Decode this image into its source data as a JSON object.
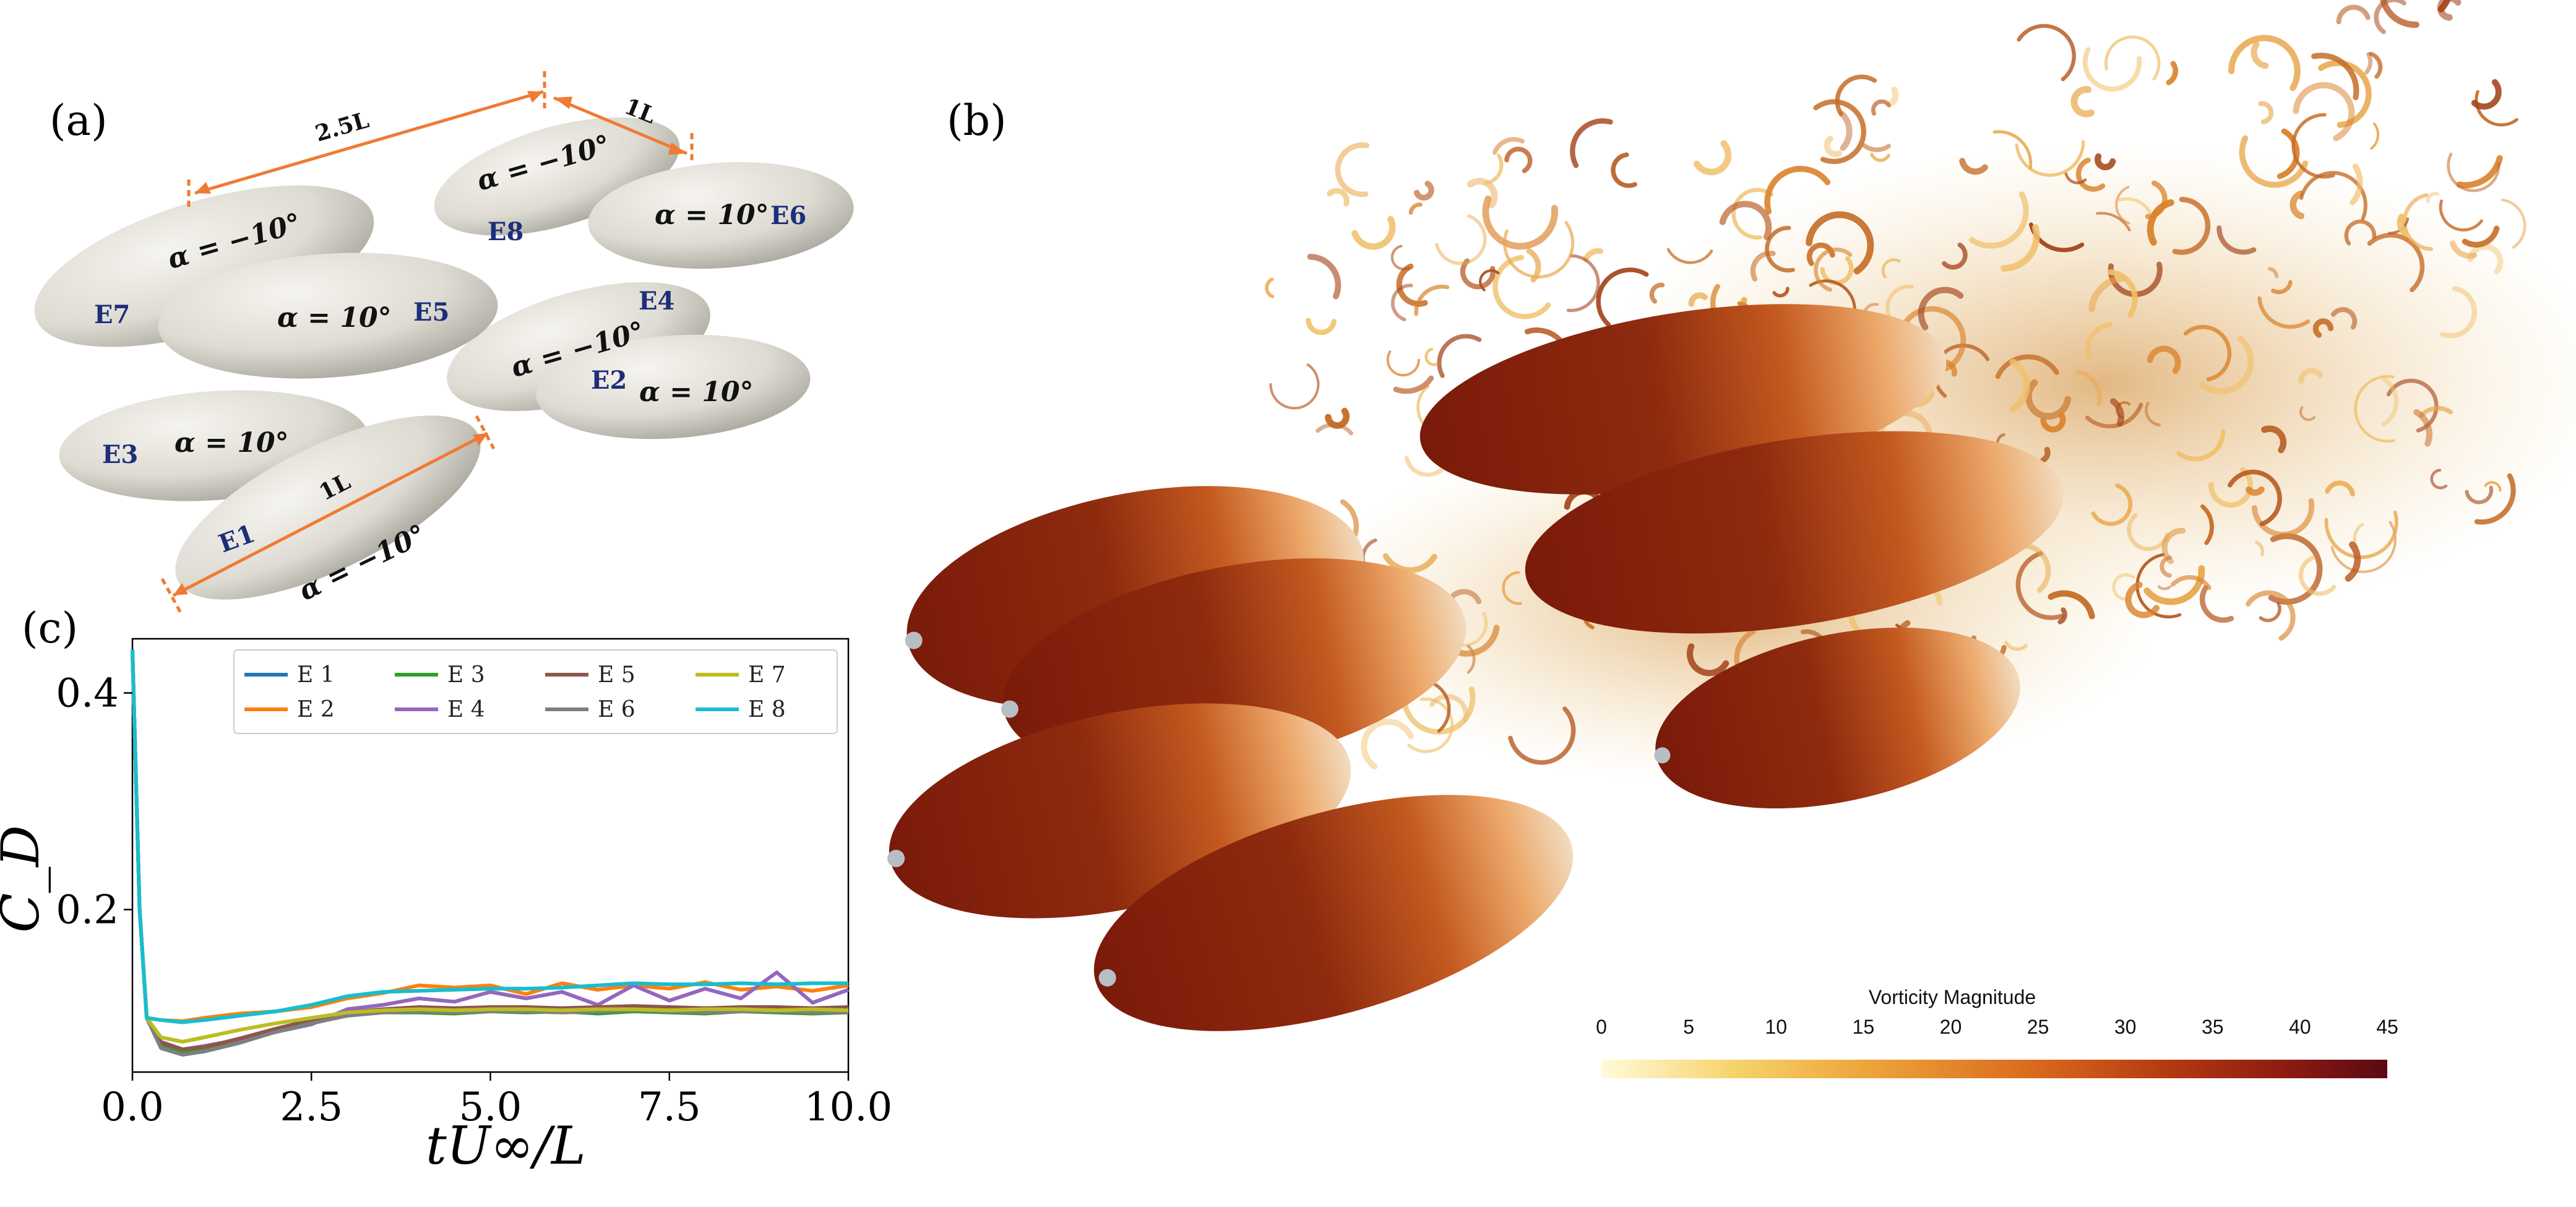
{
  "panels": {
    "a": "(a)",
    "b": "(b)",
    "c": "(c)"
  },
  "colors": {
    "body": "#dedbd3",
    "dimension": "#f07a33",
    "label": "#1d2e7a"
  },
  "panel_a": {
    "ellipsoids": [
      {
        "id": "E1",
        "angle": "α = −10°"
      },
      {
        "id": "E2",
        "angle": "α = 10°"
      },
      {
        "id": "E3",
        "angle": "α = 10°"
      },
      {
        "id": "E4",
        "angle": "α = −10°"
      },
      {
        "id": "E5",
        "angle": "α = 10°"
      },
      {
        "id": "E6",
        "angle": "α = 10°"
      },
      {
        "id": "E7",
        "angle": "α = −10°"
      },
      {
        "id": "E8",
        "angle": "α = −10°"
      }
    ],
    "dimensions": {
      "spacing": "2.5L",
      "gap": "1L",
      "length": "1L"
    }
  },
  "panel_b": {
    "colorbar": {
      "title": "Vorticity Magnitude",
      "ticks": [
        "0",
        "5",
        "10",
        "15",
        "20",
        "25",
        "30",
        "35",
        "40",
        "45"
      ],
      "colormap": [
        "#fffbd9",
        "#f6d36b",
        "#eda43a",
        "#d96a1e",
        "#b43a10",
        "#8a1a12",
        "#5a0a14"
      ]
    }
  },
  "chart_data": {
    "type": "line",
    "xlabel": "tU∞/L",
    "ylabel": "C_D",
    "xlim": [
      0,
      10
    ],
    "ylim": [
      0.05,
      0.45
    ],
    "xticks": [
      "0.0",
      "2.5",
      "5.0",
      "7.5",
      "10.0"
    ],
    "yticks": [
      "0.2",
      "0.4"
    ],
    "grid": false,
    "legend_position": "top-right",
    "x": [
      0.0,
      0.1,
      0.2,
      0.4,
      0.7,
      1.0,
      1.5,
      2.0,
      2.5,
      3.0,
      3.5,
      4.0,
      4.5,
      5.0,
      5.5,
      6.0,
      6.5,
      7.0,
      7.5,
      8.0,
      8.5,
      9.0,
      9.5,
      10.0
    ],
    "series": [
      {
        "name": "E 1",
        "color": "#1f77b4",
        "values": [
          0.44,
          0.2,
          0.1,
          0.076,
          0.07,
          0.072,
          0.08,
          0.09,
          0.098,
          0.104,
          0.106,
          0.107,
          0.106,
          0.107,
          0.108,
          0.107,
          0.108,
          0.107,
          0.108,
          0.107,
          0.108,
          0.107,
          0.108,
          0.107
        ]
      },
      {
        "name": "E 2",
        "color": "#ff7f0e",
        "values": [
          0.44,
          0.2,
          0.1,
          0.098,
          0.097,
          0.1,
          0.104,
          0.106,
          0.11,
          0.118,
          0.123,
          0.13,
          0.128,
          0.13,
          0.122,
          0.132,
          0.126,
          0.13,
          0.127,
          0.133,
          0.126,
          0.129,
          0.125,
          0.13
        ]
      },
      {
        "name": "E 3",
        "color": "#2ca02c",
        "values": [
          0.44,
          0.2,
          0.1,
          0.074,
          0.069,
          0.072,
          0.079,
          0.088,
          0.096,
          0.103,
          0.105,
          0.105,
          0.104,
          0.106,
          0.105,
          0.106,
          0.104,
          0.106,
          0.105,
          0.104,
          0.106,
          0.105,
          0.104,
          0.105
        ]
      },
      {
        "name": "E 4",
        "color": "#9467bd",
        "values": [
          0.44,
          0.2,
          0.1,
          0.078,
          0.071,
          0.074,
          0.08,
          0.087,
          0.094,
          0.108,
          0.112,
          0.118,
          0.115,
          0.124,
          0.118,
          0.124,
          0.112,
          0.13,
          0.116,
          0.127,
          0.118,
          0.142,
          0.114,
          0.126
        ]
      },
      {
        "name": "E 5",
        "color": "#8c564b",
        "values": [
          0.44,
          0.2,
          0.1,
          0.077,
          0.071,
          0.073,
          0.081,
          0.09,
          0.098,
          0.105,
          0.108,
          0.11,
          0.109,
          0.11,
          0.11,
          0.109,
          0.11,
          0.111,
          0.11,
          0.109,
          0.11,
          0.11,
          0.109,
          0.11
        ]
      },
      {
        "name": "E 6",
        "color": "#7f7f7f",
        "values": [
          0.44,
          0.2,
          0.1,
          0.072,
          0.066,
          0.069,
          0.077,
          0.087,
          0.095,
          0.102,
          0.105,
          0.106,
          0.105,
          0.106,
          0.106,
          0.105,
          0.106,
          0.107,
          0.106,
          0.105,
          0.106,
          0.106,
          0.105,
          0.105
        ]
      },
      {
        "name": "E 7",
        "color": "#bcbd22",
        "values": [
          0.44,
          0.2,
          0.1,
          0.082,
          0.078,
          0.082,
          0.089,
          0.095,
          0.1,
          0.105,
          0.107,
          0.108,
          0.107,
          0.108,
          0.108,
          0.107,
          0.108,
          0.108,
          0.107,
          0.108,
          0.108,
          0.107,
          0.108,
          0.107
        ]
      },
      {
        "name": "E 8",
        "color": "#17becf",
        "values": [
          0.44,
          0.2,
          0.1,
          0.098,
          0.096,
          0.098,
          0.102,
          0.106,
          0.112,
          0.12,
          0.124,
          0.125,
          0.126,
          0.127,
          0.127,
          0.128,
          0.13,
          0.132,
          0.131,
          0.131,
          0.132,
          0.131,
          0.132,
          0.132
        ]
      }
    ]
  }
}
